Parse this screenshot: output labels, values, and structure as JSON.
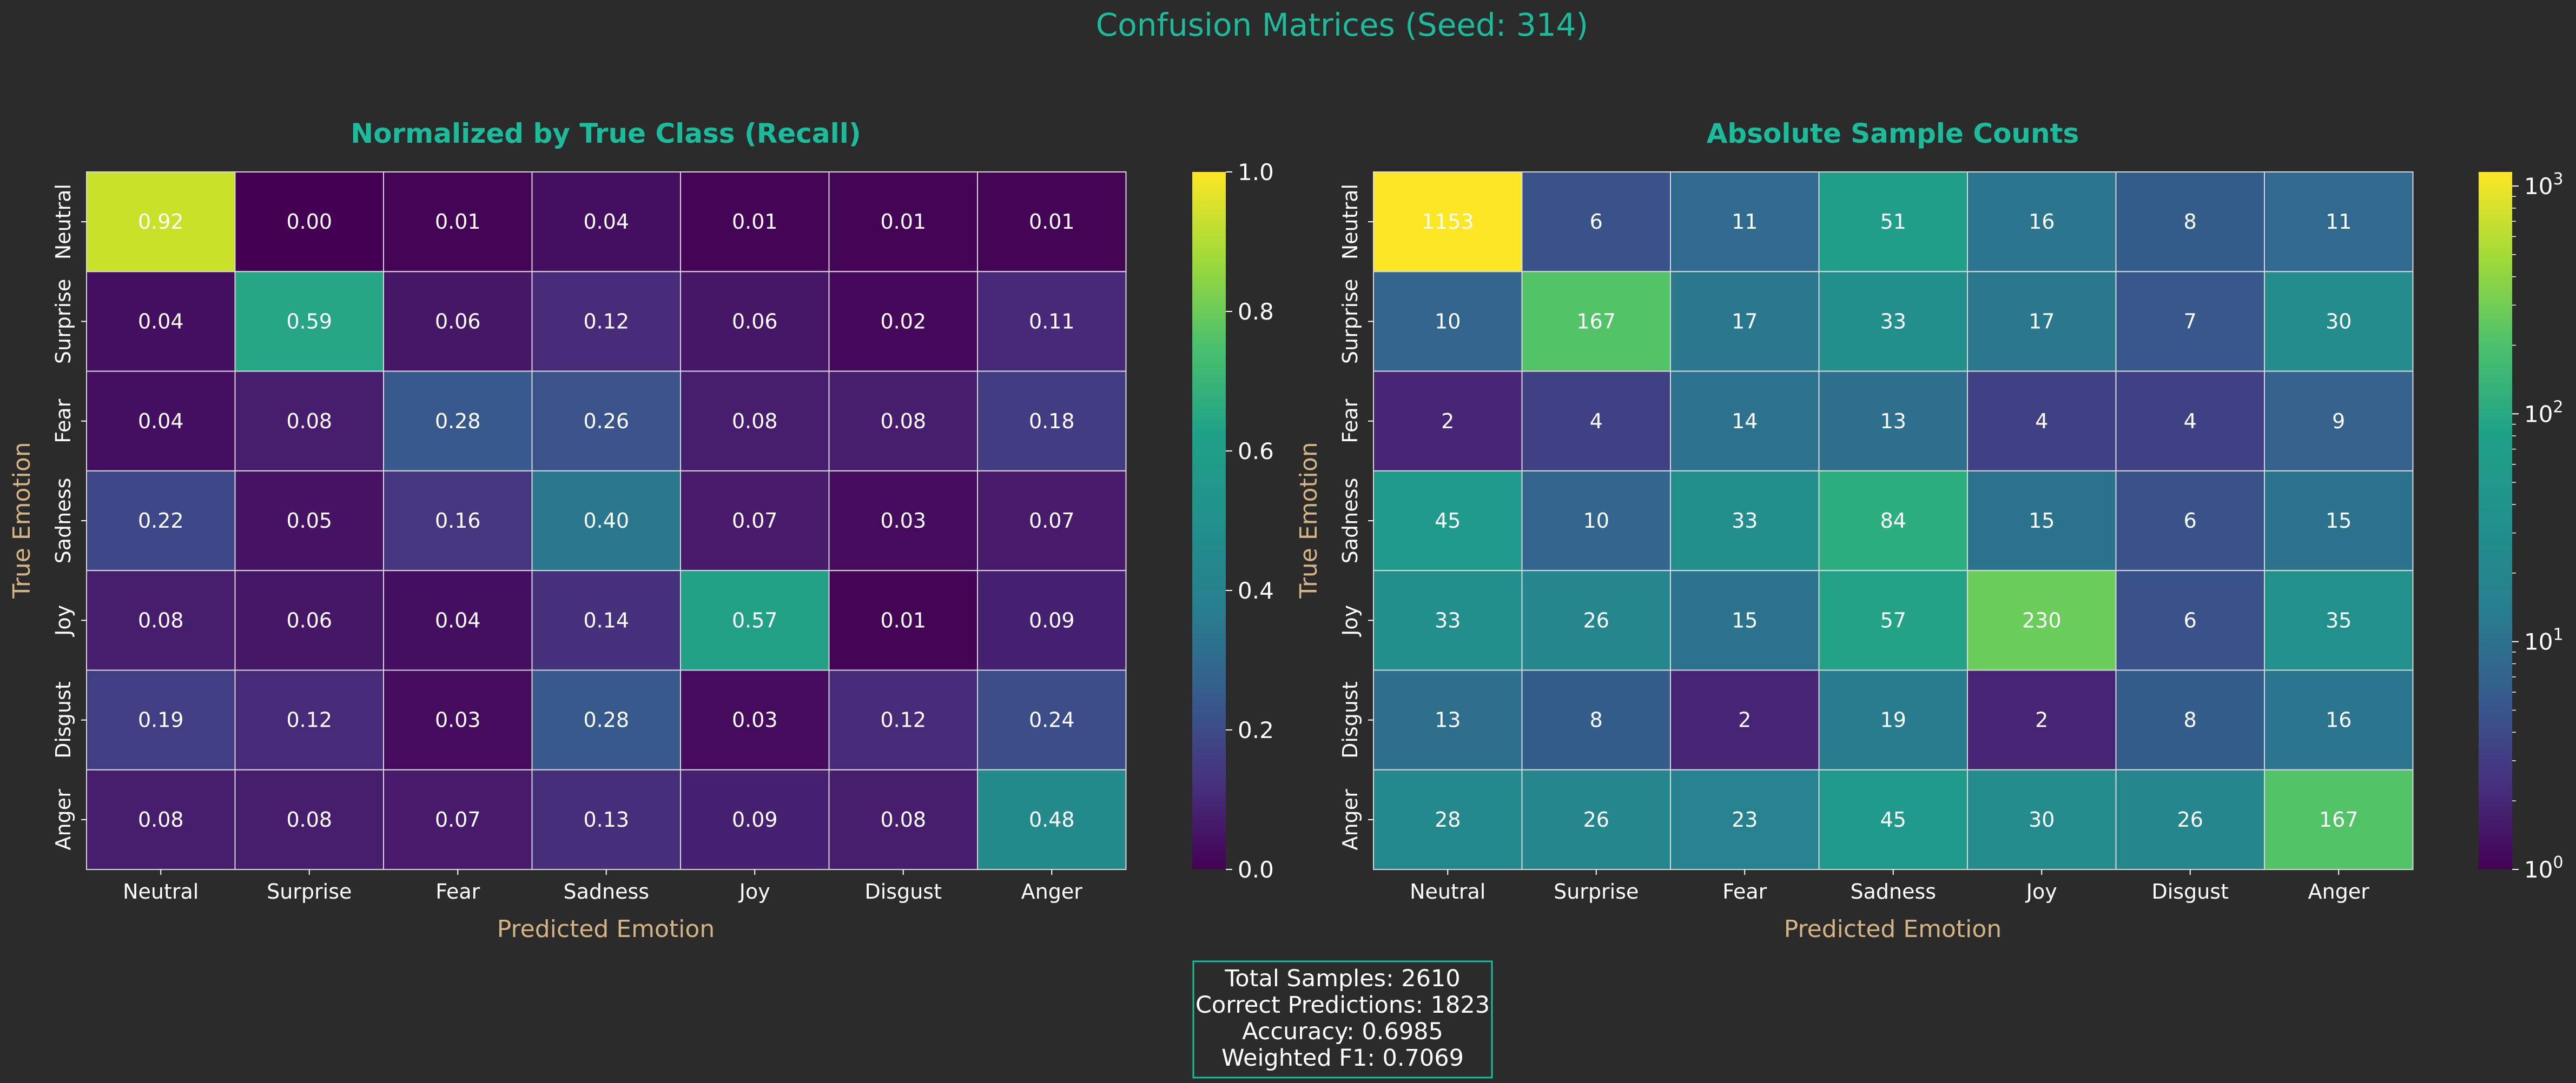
{
  "figure": {
    "title": "Confusion Matrices (Seed: 314)"
  },
  "colors": {
    "background": "#2b2b2b",
    "title": "#1abc9c",
    "axis_label": "#d4b483",
    "text": "#ffffff",
    "stats_border": "#1abc9c",
    "colormap": "viridis"
  },
  "chart_data": [
    {
      "type": "heatmap",
      "title": "Normalized by True Class (Recall)",
      "xlabel": "Predicted Emotion",
      "ylabel": "True Emotion",
      "x_categories": [
        "Neutral",
        "Surprise",
        "Fear",
        "Sadness",
        "Joy",
        "Disgust",
        "Anger"
      ],
      "y_categories": [
        "Neutral",
        "Surprise",
        "Fear",
        "Sadness",
        "Joy",
        "Disgust",
        "Anger"
      ],
      "values": [
        [
          0.92,
          0.0,
          0.01,
          0.04,
          0.01,
          0.01,
          0.01
        ],
        [
          0.04,
          0.59,
          0.06,
          0.12,
          0.06,
          0.02,
          0.11
        ],
        [
          0.04,
          0.08,
          0.28,
          0.26,
          0.08,
          0.08,
          0.18
        ],
        [
          0.22,
          0.05,
          0.16,
          0.4,
          0.07,
          0.03,
          0.07
        ],
        [
          0.08,
          0.06,
          0.04,
          0.14,
          0.57,
          0.01,
          0.09
        ],
        [
          0.19,
          0.12,
          0.03,
          0.28,
          0.03,
          0.12,
          0.24
        ],
        [
          0.08,
          0.08,
          0.07,
          0.13,
          0.09,
          0.08,
          0.48
        ]
      ],
      "value_format": "2f",
      "colorbar": {
        "scale": "linear",
        "range": [
          0.0,
          1.0
        ],
        "ticks": [
          "0.0",
          "0.2",
          "0.4",
          "0.6",
          "0.8",
          "1.0"
        ]
      }
    },
    {
      "type": "heatmap",
      "title": "Absolute Sample Counts",
      "xlabel": "Predicted Emotion",
      "ylabel": "True Emotion",
      "x_categories": [
        "Neutral",
        "Surprise",
        "Fear",
        "Sadness",
        "Joy",
        "Disgust",
        "Anger"
      ],
      "y_categories": [
        "Neutral",
        "Surprise",
        "Fear",
        "Sadness",
        "Joy",
        "Disgust",
        "Anger"
      ],
      "values": [
        [
          1153,
          6,
          11,
          51,
          16,
          8,
          11
        ],
        [
          10,
          167,
          17,
          33,
          17,
          7,
          30
        ],
        [
          2,
          4,
          14,
          13,
          4,
          4,
          9
        ],
        [
          45,
          10,
          33,
          84,
          15,
          6,
          15
        ],
        [
          33,
          26,
          15,
          57,
          230,
          6,
          35
        ],
        [
          13,
          8,
          2,
          19,
          2,
          8,
          16
        ],
        [
          28,
          26,
          23,
          45,
          30,
          26,
          167
        ]
      ],
      "value_format": "int",
      "colorbar": {
        "scale": "log",
        "range": [
          1,
          1153
        ],
        "ticks": [
          "10^0",
          "10^1",
          "10^2",
          "10^3"
        ]
      }
    }
  ],
  "stats_box": {
    "lines": [
      "Total Samples: 2610",
      "Correct Predictions: 1823",
      "Accuracy: 0.6985",
      "Weighted F1: 0.7069"
    ]
  }
}
